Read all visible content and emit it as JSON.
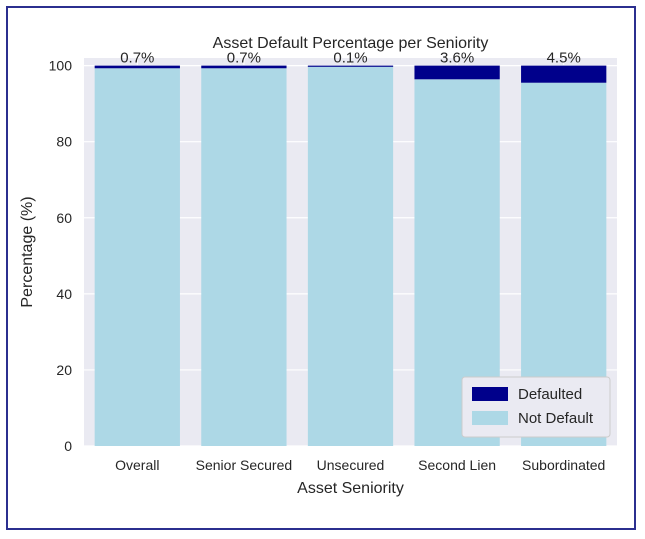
{
  "chart_data": {
    "type": "bar",
    "stacked": true,
    "title": "Asset Default Percentage per Seniority",
    "xlabel": "Asset Seniority",
    "ylabel": "Percentage (%)",
    "ylim": [
      0,
      102
    ],
    "yticks": [
      0,
      20,
      40,
      60,
      80,
      100
    ],
    "categories": [
      "Overall",
      "Senior Secured",
      "Unsecured",
      "Second Lien",
      "Subordinated"
    ],
    "series": [
      {
        "name": "Not Default",
        "color": "#add8e6",
        "values": [
          99.3,
          99.3,
          99.9,
          96.4,
          95.5
        ]
      },
      {
        "name": "Defaulted",
        "color": "#00008b",
        "values": [
          0.7,
          0.7,
          0.1,
          3.6,
          4.5
        ]
      }
    ],
    "data_labels": [
      "0.7%",
      "0.7%",
      "0.1%",
      "3.6%",
      "4.5%"
    ],
    "legend": {
      "position": "lower-right",
      "entries": [
        "Defaulted",
        "Not Default"
      ]
    },
    "grid": true,
    "background": "#eaeaf2"
  }
}
